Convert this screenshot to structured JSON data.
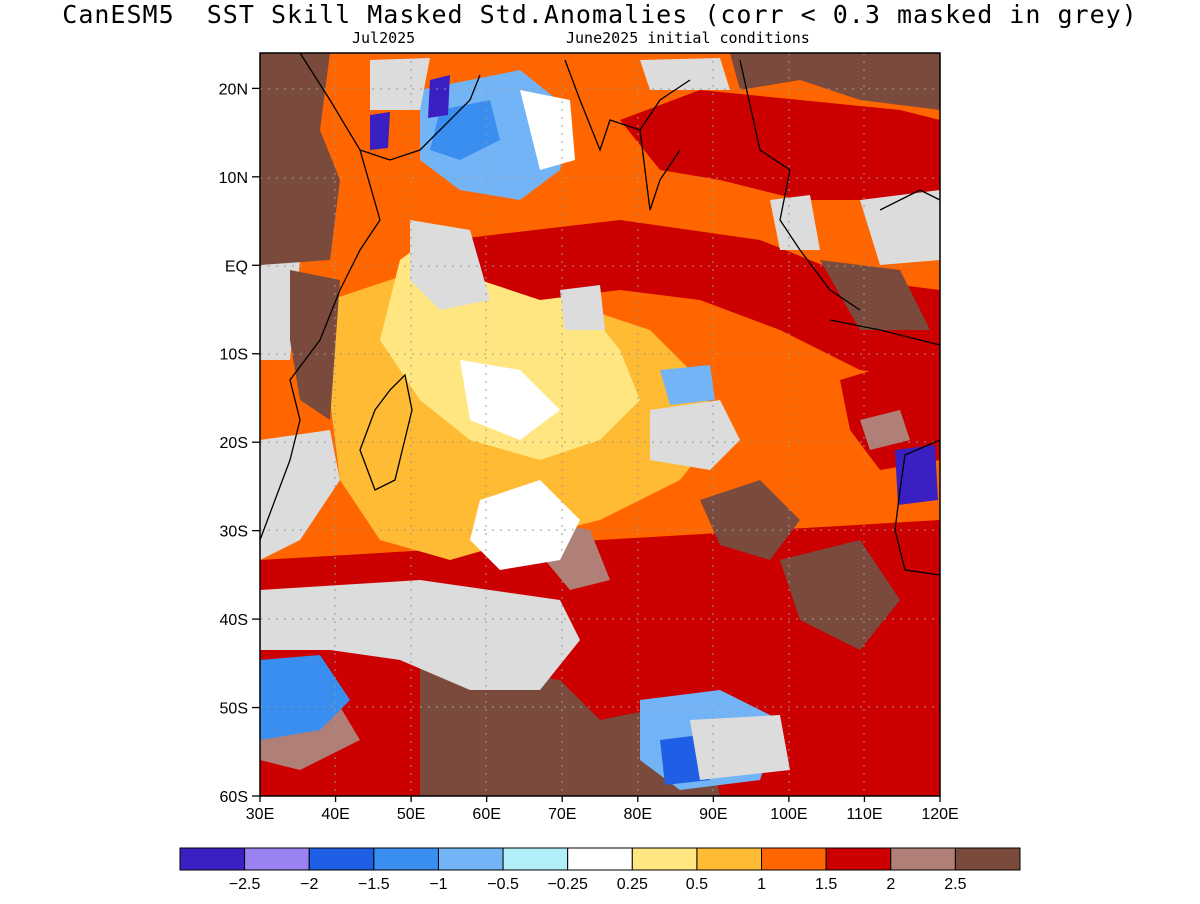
{
  "title": "CanESM5  SST Skill Masked Std.Anomalies (corr < 0.3 masked in grey)",
  "subtitle_left": "Jul2025",
  "subtitle_right": "June2025 initial conditions",
  "map": {
    "lon_range": [
      30,
      120
    ],
    "lat_range": [
      -60,
      24
    ],
    "lon_ticks": [
      "30E",
      "40E",
      "50E",
      "60E",
      "70E",
      "80E",
      "90E",
      "100E",
      "110E",
      "120E"
    ],
    "lat_ticks": [
      "20N",
      "10N",
      "EQ",
      "10S",
      "20S",
      "30S",
      "40S",
      "50S",
      "60S"
    ],
    "land_color": "#ffffff",
    "mask_color": "#dcdcdc",
    "grid": true
  },
  "colorbar": {
    "colors": [
      "#3a1fc2",
      "#9a82f3",
      "#1f5fe6",
      "#3a8ef0",
      "#73b4f6",
      "#b0eef8",
      "#ffffff",
      "#ffe680",
      "#ffbb33",
      "#ff6600",
      "#cc0000",
      "#b08078",
      "#7a4a3c"
    ],
    "labels": [
      "-2.5",
      "-2",
      "-1.5",
      "-1",
      "-0.5",
      "-0.25",
      "0.25",
      "0.5",
      "1",
      "1.5",
      "2",
      "2.5"
    ]
  }
}
